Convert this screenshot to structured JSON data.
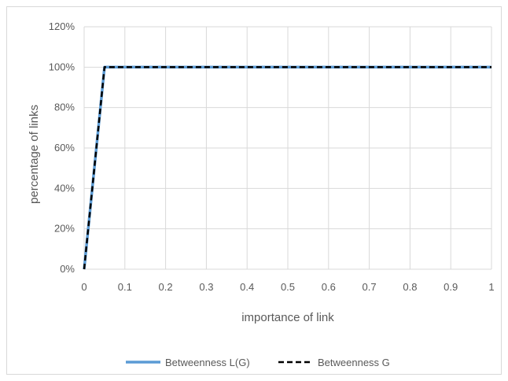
{
  "chart_data": {
    "type": "line",
    "title": "",
    "xlabel": "importance of link",
    "ylabel": "percentage of links",
    "xlim": [
      0,
      1
    ],
    "ylim": [
      0,
      1.2
    ],
    "x_ticks": [
      "0",
      "0.1",
      "0.2",
      "0.3",
      "0.4",
      "0.5",
      "0.6",
      "0.7",
      "0.8",
      "0.9",
      "1"
    ],
    "y_ticks": [
      "0%",
      "20%",
      "40%",
      "60%",
      "80%",
      "100%",
      "120%"
    ],
    "grid": "vertical and horizontal",
    "legend_position": "bottom",
    "series": [
      {
        "name": "Betweenness L(G)",
        "color": "#5b9bd5",
        "style": "solid",
        "x": [
          0,
          0.05,
          1
        ],
        "y": [
          0,
          1.0,
          1.0
        ]
      },
      {
        "name": "Betweenness G",
        "color": "#000000",
        "style": "dashed",
        "x": [
          0,
          0.05,
          1
        ],
        "y": [
          0,
          1.0,
          1.0
        ]
      }
    ]
  }
}
